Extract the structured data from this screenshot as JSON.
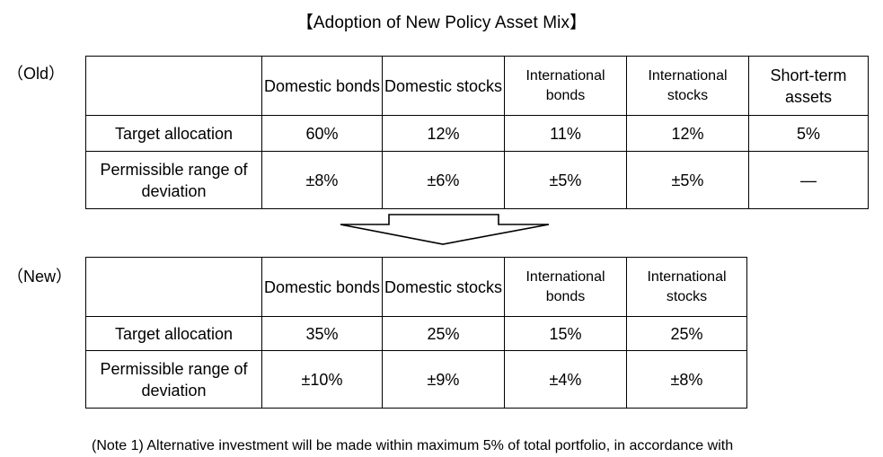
{
  "title": "【Adoption of New Policy Asset Mix】",
  "old": {
    "label": "（Old）",
    "headers": [
      "Domestic bonds",
      "Domestic stocks",
      "International bonds",
      "International stocks",
      "Short-term assets"
    ],
    "rows": [
      {
        "label": "Target allocation",
        "values": [
          "60%",
          "12%",
          "11%",
          "12%",
          "5%"
        ]
      },
      {
        "label": "Permissible range of deviation",
        "values": [
          "±8%",
          "±6%",
          "±5%",
          "±5%",
          "—"
        ]
      }
    ]
  },
  "new": {
    "label": "（New）",
    "headers": [
      "Domestic bonds",
      "Domestic stocks",
      "International bonds",
      "International stocks"
    ],
    "rows": [
      {
        "label": "Target allocation",
        "values": [
          "35%",
          "25%",
          "15%",
          "25%"
        ]
      },
      {
        "label": "Permissible range of deviation",
        "values": [
          "±10%",
          "±9%",
          "±4%",
          "±8%"
        ]
      }
    ]
  },
  "note": "(Note 1) Alternative investment will be made within maximum 5% of total portfolio, in accordance with"
}
